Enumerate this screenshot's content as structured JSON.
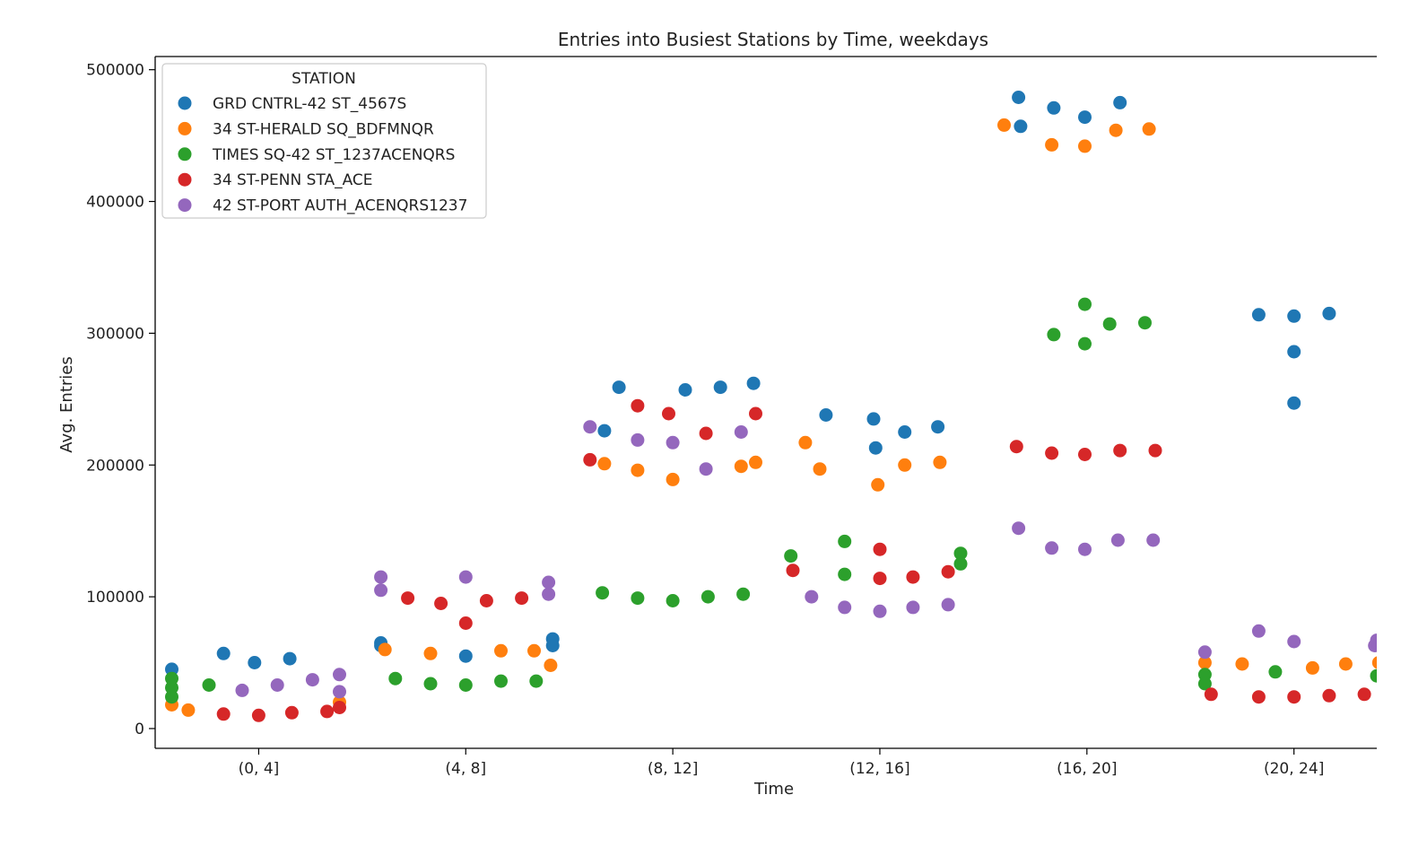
{
  "chart_data": {
    "type": "scatter",
    "title": "Entries into Busiest Stations by Time, weekdays",
    "xlabel": "Time",
    "ylabel": "Avg. Entries",
    "ylim": [
      -15000,
      510000
    ],
    "yticks": [
      0,
      100000,
      200000,
      300000,
      400000,
      500000
    ],
    "ytick_labels": [
      "0",
      "100000",
      "200000",
      "300000",
      "400000",
      "500000"
    ],
    "categories": [
      "(0, 4]",
      "(4, 8]",
      "(8, 12]",
      "(12, 16]",
      "(16, 20]",
      "(20, 24]"
    ],
    "grid": false,
    "legend": {
      "title": "STATION",
      "placement": "upper-left"
    },
    "series": [
      {
        "name": "GRD CNTRL-42 ST_4567S",
        "color": "#1f77b4",
        "points": [
          {
            "x": -0.42,
            "y": 45000
          },
          {
            "x": -0.17,
            "y": 57000
          },
          {
            "x": -0.02,
            "y": 50000
          },
          {
            "x": 0.15,
            "y": 53000
          },
          {
            "x": 0.59,
            "y": 65000
          },
          {
            "x": 0.59,
            "y": 63000
          },
          {
            "x": 1.0,
            "y": 55000
          },
          {
            "x": 1.42,
            "y": 68000
          },
          {
            "x": 1.42,
            "y": 63000
          },
          {
            "x": 1.67,
            "y": 226000
          },
          {
            "x": 1.74,
            "y": 259000
          },
          {
            "x": 2.06,
            "y": 257000
          },
          {
            "x": 2.23,
            "y": 259000
          },
          {
            "x": 2.39,
            "y": 262000
          },
          {
            "x": 2.74,
            "y": 238000
          },
          {
            "x": 2.97,
            "y": 235000
          },
          {
            "x": 2.98,
            "y": 213000
          },
          {
            "x": 3.12,
            "y": 225000
          },
          {
            "x": 3.28,
            "y": 229000
          },
          {
            "x": 3.67,
            "y": 479000
          },
          {
            "x": 3.68,
            "y": 457000
          },
          {
            "x": 3.84,
            "y": 471000
          },
          {
            "x": 3.99,
            "y": 464000
          },
          {
            "x": 4.16,
            "y": 475000
          },
          {
            "x": 4.83,
            "y": 314000
          },
          {
            "x": 5.0,
            "y": 313000
          },
          {
            "x": 5.0,
            "y": 286000
          },
          {
            "x": 5.0,
            "y": 247000
          },
          {
            "x": 5.17,
            "y": 315000
          }
        ]
      },
      {
        "name": "34 ST-HERALD SQ_BDFMNQR",
        "color": "#ff7f0e",
        "points": [
          {
            "x": -0.42,
            "y": 18000
          },
          {
            "x": -0.34,
            "y": 14000
          },
          {
            "x": 0.39,
            "y": 20000
          },
          {
            "x": 0.61,
            "y": 60000
          },
          {
            "x": 0.83,
            "y": 57000
          },
          {
            "x": 1.17,
            "y": 59000
          },
          {
            "x": 1.33,
            "y": 59000
          },
          {
            "x": 1.41,
            "y": 48000
          },
          {
            "x": 1.67,
            "y": 201000
          },
          {
            "x": 1.83,
            "y": 196000
          },
          {
            "x": 2.0,
            "y": 189000
          },
          {
            "x": 2.33,
            "y": 199000
          },
          {
            "x": 2.4,
            "y": 202000
          },
          {
            "x": 2.64,
            "y": 217000
          },
          {
            "x": 2.71,
            "y": 197000
          },
          {
            "x": 2.99,
            "y": 185000
          },
          {
            "x": 3.12,
            "y": 200000
          },
          {
            "x": 3.29,
            "y": 202000
          },
          {
            "x": 3.6,
            "y": 458000
          },
          {
            "x": 3.83,
            "y": 443000
          },
          {
            "x": 3.99,
            "y": 442000
          },
          {
            "x": 4.14,
            "y": 454000
          },
          {
            "x": 4.3,
            "y": 455000
          },
          {
            "x": 4.57,
            "y": 50000
          },
          {
            "x": 4.75,
            "y": 49000
          },
          {
            "x": 5.09,
            "y": 46000
          },
          {
            "x": 5.25,
            "y": 49000
          },
          {
            "x": 5.41,
            "y": 50000
          }
        ]
      },
      {
        "name": "TIMES SQ-42 ST_1237ACENQRS",
        "color": "#2ca02c",
        "points": [
          {
            "x": -0.42,
            "y": 38000
          },
          {
            "x": -0.42,
            "y": 31000
          },
          {
            "x": -0.42,
            "y": 24000
          },
          {
            "x": -0.24,
            "y": 33000
          },
          {
            "x": 0.66,
            "y": 38000
          },
          {
            "x": 0.83,
            "y": 34000
          },
          {
            "x": 1.0,
            "y": 33000
          },
          {
            "x": 1.17,
            "y": 36000
          },
          {
            "x": 1.34,
            "y": 36000
          },
          {
            "x": 1.66,
            "y": 103000
          },
          {
            "x": 1.83,
            "y": 99000
          },
          {
            "x": 2.0,
            "y": 97000
          },
          {
            "x": 2.17,
            "y": 100000
          },
          {
            "x": 2.34,
            "y": 102000
          },
          {
            "x": 2.57,
            "y": 131000
          },
          {
            "x": 2.83,
            "y": 142000
          },
          {
            "x": 2.83,
            "y": 117000
          },
          {
            "x": 3.39,
            "y": 133000
          },
          {
            "x": 3.39,
            "y": 125000
          },
          {
            "x": 3.84,
            "y": 299000
          },
          {
            "x": 3.99,
            "y": 322000
          },
          {
            "x": 3.99,
            "y": 292000
          },
          {
            "x": 4.11,
            "y": 307000
          },
          {
            "x": 4.28,
            "y": 308000
          },
          {
            "x": 4.57,
            "y": 41000
          },
          {
            "x": 4.57,
            "y": 34000
          },
          {
            "x": 4.91,
            "y": 43000
          },
          {
            "x": 5.4,
            "y": 40000
          }
        ]
      },
      {
        "name": "34 ST-PENN STA_ACE",
        "color": "#d62728",
        "points": [
          {
            "x": -0.17,
            "y": 11000
          },
          {
            "x": 0.0,
            "y": 10000
          },
          {
            "x": 0.16,
            "y": 12000
          },
          {
            "x": 0.33,
            "y": 13000
          },
          {
            "x": 0.39,
            "y": 16000
          },
          {
            "x": 0.72,
            "y": 99000
          },
          {
            "x": 0.88,
            "y": 95000
          },
          {
            "x": 1.0,
            "y": 80000
          },
          {
            "x": 1.1,
            "y": 97000
          },
          {
            "x": 1.27,
            "y": 99000
          },
          {
            "x": 1.6,
            "y": 204000
          },
          {
            "x": 1.83,
            "y": 245000
          },
          {
            "x": 1.98,
            "y": 239000
          },
          {
            "x": 2.16,
            "y": 224000
          },
          {
            "x": 2.4,
            "y": 239000
          },
          {
            "x": 2.58,
            "y": 120000
          },
          {
            "x": 3.0,
            "y": 136000
          },
          {
            "x": 3.0,
            "y": 114000
          },
          {
            "x": 3.16,
            "y": 115000
          },
          {
            "x": 3.33,
            "y": 119000
          },
          {
            "x": 3.66,
            "y": 214000
          },
          {
            "x": 3.83,
            "y": 209000
          },
          {
            "x": 3.99,
            "y": 208000
          },
          {
            "x": 4.16,
            "y": 211000
          },
          {
            "x": 4.33,
            "y": 211000
          },
          {
            "x": 4.6,
            "y": 26000
          },
          {
            "x": 4.83,
            "y": 24000
          },
          {
            "x": 5.0,
            "y": 24000
          },
          {
            "x": 5.17,
            "y": 25000
          },
          {
            "x": 5.34,
            "y": 26000
          }
        ]
      },
      {
        "name": "42 ST-PORT AUTH_ACENQRS1237",
        "color": "#9467bd",
        "points": [
          {
            "x": -0.08,
            "y": 29000
          },
          {
            "x": 0.09,
            "y": 33000
          },
          {
            "x": 0.26,
            "y": 37000
          },
          {
            "x": 0.39,
            "y": 41000
          },
          {
            "x": 0.39,
            "y": 28000
          },
          {
            "x": 0.59,
            "y": 115000
          },
          {
            "x": 0.59,
            "y": 105000
          },
          {
            "x": 1.0,
            "y": 115000
          },
          {
            "x": 1.4,
            "y": 111000
          },
          {
            "x": 1.4,
            "y": 102000
          },
          {
            "x": 1.6,
            "y": 229000
          },
          {
            "x": 1.83,
            "y": 219000
          },
          {
            "x": 2.0,
            "y": 217000
          },
          {
            "x": 2.16,
            "y": 197000
          },
          {
            "x": 2.33,
            "y": 225000
          },
          {
            "x": 2.67,
            "y": 100000
          },
          {
            "x": 2.83,
            "y": 92000
          },
          {
            "x": 3.0,
            "y": 89000
          },
          {
            "x": 3.16,
            "y": 92000
          },
          {
            "x": 3.33,
            "y": 94000
          },
          {
            "x": 3.67,
            "y": 152000
          },
          {
            "x": 3.83,
            "y": 137000
          },
          {
            "x": 3.99,
            "y": 136000
          },
          {
            "x": 4.15,
            "y": 143000
          },
          {
            "x": 4.32,
            "y": 143000
          },
          {
            "x": 4.57,
            "y": 58000
          },
          {
            "x": 4.83,
            "y": 74000
          },
          {
            "x": 5.0,
            "y": 66000
          },
          {
            "x": 5.4,
            "y": 67000
          },
          {
            "x": 5.39,
            "y": 63000
          }
        ]
      }
    ]
  }
}
